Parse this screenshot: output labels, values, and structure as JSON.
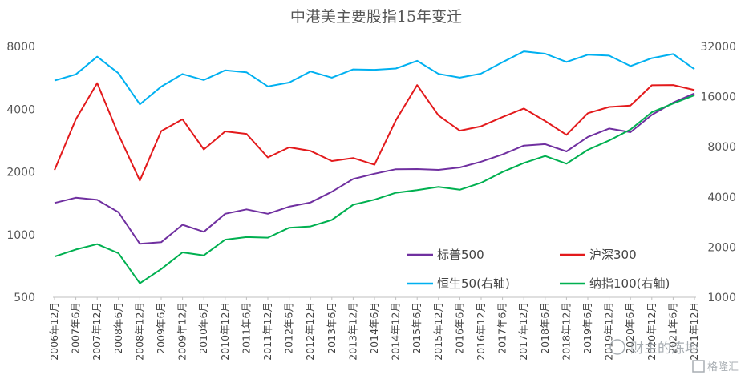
{
  "chart_data": {
    "type": "line",
    "title": "中港美主要股指15年变迁",
    "x": [
      "2006年12月",
      "2007年6月",
      "2007年12月",
      "2008年6月",
      "2008年12月",
      "2009年6月",
      "2009年12月",
      "2010年6月",
      "2010年12月",
      "2011年6月",
      "2011年12月",
      "2012年6月",
      "2012年12月",
      "2013年6月",
      "2013年12月",
      "2014年6月",
      "2014年12月",
      "2015年6月",
      "2015年12月",
      "2016年6月",
      "2016年12月",
      "2017年6月",
      "2017年12月",
      "2018年6月",
      "2018年12月",
      "2019年6月",
      "2019年12月",
      "2020年6月",
      "2020年12月",
      "2021年6月",
      "2021年12月"
    ],
    "y_left": {
      "scale": "log",
      "ylim": [
        500,
        8000
      ],
      "ticks": [
        500,
        1000,
        2000,
        4000,
        8000
      ]
    },
    "y_right": {
      "scale": "log",
      "ylim": [
        1000,
        32000
      ],
      "ticks": [
        1000,
        2000,
        4000,
        8000,
        16000,
        32000
      ]
    },
    "series": [
      {
        "name": "标普500",
        "axis": "left",
        "color": "#7030a0",
        "values": [
          1418,
          1503,
          1468,
          1280,
          903,
          919,
          1115,
          1031,
          1258,
          1321,
          1258,
          1362,
          1426,
          1606,
          1848,
          1960,
          2059,
          2063,
          2044,
          2099,
          2239,
          2423,
          2674,
          2718,
          2507,
          2942,
          3231,
          3100,
          3756,
          4298,
          4766
        ]
      },
      {
        "name": "沪深300",
        "axis": "left",
        "color": "#e31a1c",
        "values": [
          2041,
          3575,
          5338,
          3020,
          1817,
          3138,
          3575,
          2564,
          3128,
          3044,
          2346,
          2623,
          2523,
          2255,
          2331,
          2165,
          3534,
          5221,
          3731,
          3154,
          3310,
          3666,
          4030,
          3510,
          3011,
          3826,
          4097,
          4164,
          5211,
          5224,
          4940
        ]
      },
      {
        "name": "恒生50(右轴)",
        "axis": "right",
        "color": "#00b0f0",
        "values": [
          19965,
          21773,
          27813,
          22102,
          14387,
          18379,
          21873,
          20129,
          23035,
          22398,
          18434,
          19441,
          22657,
          20803,
          23306,
          23191,
          23605,
          26250,
          21914,
          20794,
          22001,
          25765,
          29919,
          28955,
          25845,
          28543,
          28190,
          24427,
          27231,
          28828,
          23398
        ]
      },
      {
        "name": "纳指100(右轴)",
        "axis": "right",
        "color": "#00b050",
        "values": [
          1756,
          1934,
          2084,
          1837,
          1212,
          1477,
          1860,
          1784,
          2218,
          2296,
          2278,
          2615,
          2661,
          2910,
          3592,
          3851,
          4236,
          4397,
          4594,
          4417,
          4864,
          5646,
          6397,
          7040,
          6330,
          7672,
          8733,
          10156,
          12888,
          14554,
          16320
        ]
      }
    ]
  },
  "legend": [
    {
      "label": "标普500",
      "color": "#7030a0"
    },
    {
      "label": "沪深300",
      "color": "#e31a1c"
    },
    {
      "label": "恒生50(右轴)",
      "color": "#00b0f0"
    },
    {
      "label": "纳指100(右轴)",
      "color": "#00b050"
    }
  ],
  "watermark": {
    "text1": "财主的炼地",
    "text2": "格隆汇"
  }
}
